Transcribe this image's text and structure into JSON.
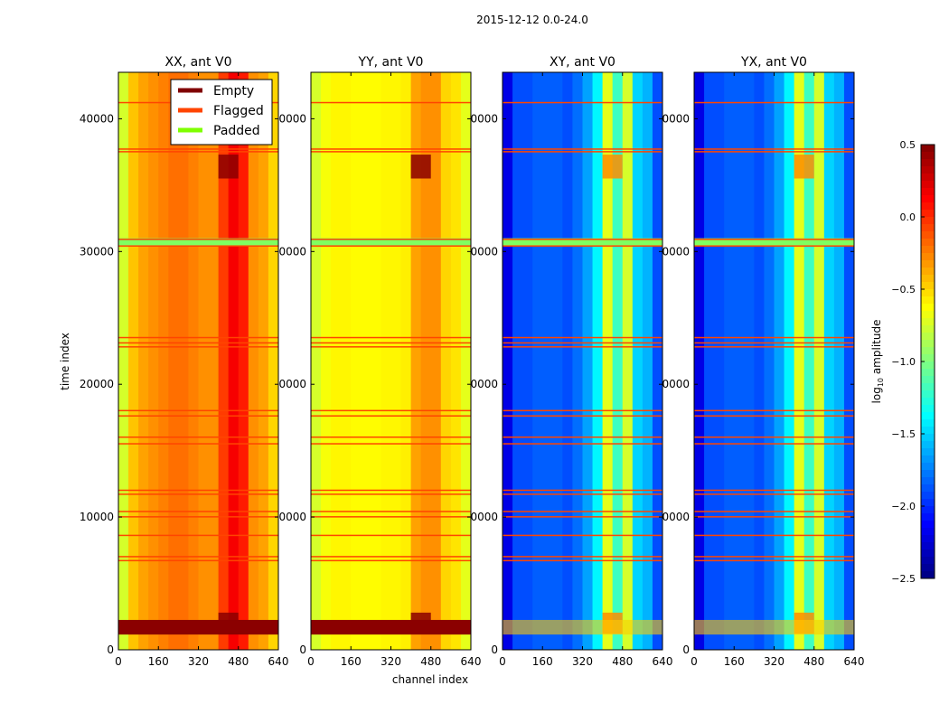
{
  "chart_data": {
    "type": "heatmap",
    "title": "2015-12-12 0.0-24.0",
    "xlabel": "channel index",
    "ylabel": "time index",
    "xlim": [
      0,
      640
    ],
    "ylim": [
      0,
      43500
    ],
    "xticks": [
      "0",
      "160",
      "320",
      "480",
      "640"
    ],
    "xtick_values": [
      0,
      160,
      320,
      480,
      640
    ],
    "yticks": [
      "0",
      "10000",
      "20000",
      "30000",
      "40000"
    ],
    "ytick_values": [
      0,
      10000,
      20000,
      30000,
      40000
    ],
    "colorbar": {
      "label_prefix": "log",
      "label_sub": "10",
      "label_suffix": " amplitude",
      "range": [
        -2.5,
        0.5
      ],
      "colormap": "jet",
      "ticks": [
        "0.5",
        "0.0",
        "−0.5",
        "−1.0",
        "−1.5",
        "−2.0",
        "−2.5"
      ],
      "tick_values": [
        0.5,
        0.0,
        -0.5,
        -1.0,
        -1.5,
        -2.0,
        -2.5
      ]
    },
    "legend": {
      "placement": "upper-right of first panel",
      "entries": [
        {
          "label": "Empty",
          "color": "#800000"
        },
        {
          "label": "Flagged",
          "color": "#ff4500"
        },
        {
          "label": "Padded",
          "color": "#7fff00"
        }
      ]
    },
    "channel_bin_width": 40,
    "panels": [
      {
        "title": "XX, ant V0",
        "column_profile": [
          -0.75,
          -0.45,
          -0.35,
          -0.3,
          -0.25,
          -0.2,
          -0.2,
          -0.25,
          -0.3,
          -0.3,
          -0.05,
          0.15,
          0.05,
          -0.3,
          -0.35,
          -0.5
        ]
      },
      {
        "title": "YY, ant V0",
        "column_profile": [
          -0.75,
          -0.65,
          -0.6,
          -0.6,
          -0.62,
          -0.62,
          -0.62,
          -0.6,
          -0.6,
          -0.58,
          -0.35,
          -0.3,
          -0.3,
          -0.5,
          -0.55,
          -0.7
        ]
      },
      {
        "title": "XY, ant V0",
        "column_profile": [
          -2.2,
          -1.9,
          -1.9,
          -1.85,
          -1.85,
          -1.85,
          -1.9,
          -1.8,
          -1.65,
          -1.4,
          -0.7,
          -1.2,
          -0.75,
          -1.5,
          -1.6,
          -1.9
        ]
      },
      {
        "title": "YX, ant V0",
        "column_profile": [
          -2.2,
          -1.9,
          -1.9,
          -1.85,
          -1.85,
          -1.85,
          -1.9,
          -1.8,
          -1.65,
          -1.4,
          -0.7,
          -1.2,
          -0.75,
          -1.5,
          -1.6,
          -1.9
        ]
      }
    ],
    "empty_rows": [
      [
        1150,
        2250
      ]
    ],
    "padded_rows": [
      [
        30450,
        31000
      ]
    ],
    "flagged_rows": [
      41200,
      37700,
      37500,
      30900,
      30400,
      23500,
      23100,
      22800,
      18000,
      17600,
      16000,
      15500,
      12000,
      11700,
      10400,
      10000,
      8600,
      7000,
      6700
    ],
    "hot_blocks": [
      {
        "time": [
          35500,
          37300
        ],
        "channels": [
          400,
          480
        ]
      },
      {
        "time": [
          1200,
          2800
        ],
        "channels": [
          400,
          480
        ]
      }
    ]
  }
}
